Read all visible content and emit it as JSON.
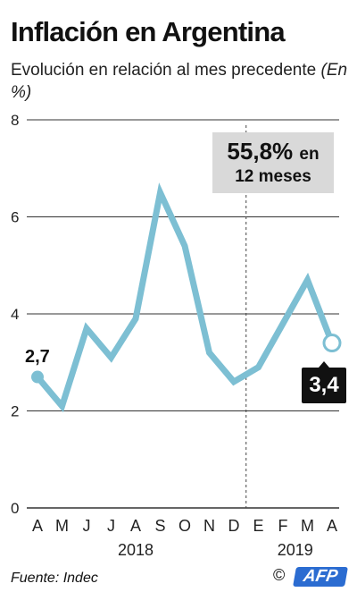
{
  "header": {
    "title": "Inflación  en Argentina",
    "subtitle": "Evolución en relación al mes precedente",
    "unit": "(En %)"
  },
  "annotation": {
    "value": "55,8%",
    "connector": "en",
    "period": "12 meses"
  },
  "labels": {
    "first_point": "2,7",
    "last_point": "3,4"
  },
  "footer": {
    "source": "Fuente: Indec",
    "credit": "©",
    "logo": "AFP"
  },
  "colors": {
    "line": "#7dbfd3",
    "grid": "#333333",
    "callout_bg": "#d9d9d9",
    "badge_bg": "#111111",
    "logo_bg": "#2b6cd1"
  },
  "chart_data": {
    "type": "line",
    "categories": [
      "A",
      "M",
      "J",
      "J",
      "A",
      "S",
      "O",
      "N",
      "D",
      "E",
      "F",
      "M",
      "A"
    ],
    "years": [
      {
        "label": "2018",
        "from_index": 0,
        "to_index": 8
      },
      {
        "label": "2019",
        "from_index": 9,
        "to_index": 12
      }
    ],
    "series": [
      {
        "values": [
          2.7,
          2.1,
          3.7,
          3.1,
          3.9,
          6.5,
          5.4,
          3.2,
          2.6,
          2.9,
          3.8,
          4.7,
          3.4
        ]
      }
    ],
    "yticks": [
      "0",
      "2",
      "4",
      "6",
      "8"
    ],
    "ylim": [
      0,
      8
    ],
    "grid": "horizontal",
    "year_divider_after_index": 8,
    "highlight_last_point": true
  }
}
